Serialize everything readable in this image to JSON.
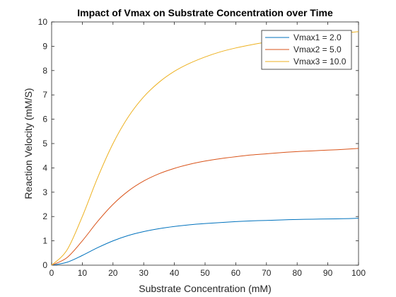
{
  "chart_data": {
    "type": "line",
    "title": "Impact of Vmax on Substrate Concentration over Time",
    "xlabel": "Substrate Concentration (mM)",
    "ylabel": "Reaction Velocity (mM/S)",
    "xlim": [
      0,
      100
    ],
    "ylim": [
      0,
      10
    ],
    "xticks": [
      0,
      10,
      20,
      30,
      40,
      50,
      60,
      70,
      80,
      90,
      100
    ],
    "yticks": [
      0,
      1,
      2,
      3,
      4,
      5,
      6,
      7,
      8,
      9,
      10
    ],
    "grid": false,
    "legend_position": "top-right",
    "x": [
      0,
      5,
      10,
      15,
      20,
      25,
      30,
      35,
      40,
      45,
      50,
      55,
      60,
      65,
      70,
      75,
      80,
      85,
      90,
      95,
      100
    ],
    "series": [
      {
        "name": "Vmax1 = 2.0",
        "color": "#0072BD",
        "values": [
          0,
          0.12,
          0.4,
          0.72,
          1.0,
          1.22,
          1.38,
          1.5,
          1.59,
          1.66,
          1.71,
          1.75,
          1.79,
          1.82,
          1.84,
          1.86,
          1.88,
          1.89,
          1.9,
          1.91,
          1.93
        ]
      },
      {
        "name": "Vmax2 = 5.0",
        "color": "#D95319",
        "values": [
          0,
          0.31,
          1.0,
          1.8,
          2.5,
          3.05,
          3.46,
          3.76,
          3.98,
          4.15,
          4.28,
          4.38,
          4.46,
          4.53,
          4.58,
          4.63,
          4.67,
          4.7,
          4.73,
          4.76,
          4.8
        ]
      },
      {
        "name": "Vmax3 = 10.0",
        "color": "#EDB120",
        "values": [
          0,
          0.62,
          2.0,
          3.6,
          5.0,
          6.1,
          6.92,
          7.52,
          7.97,
          8.3,
          8.56,
          8.77,
          8.93,
          9.06,
          9.17,
          9.27,
          9.35,
          9.42,
          9.48,
          9.54,
          9.6
        ]
      }
    ]
  }
}
